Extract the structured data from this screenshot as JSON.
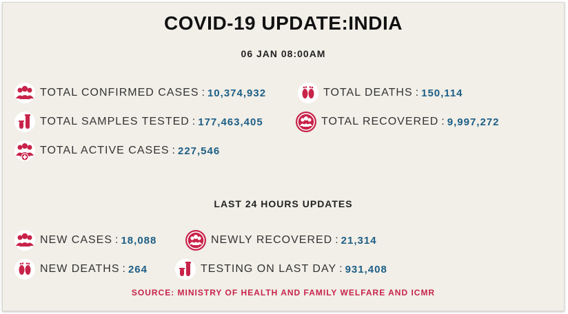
{
  "title": "COVID-19 UPDATE:INDIA",
  "timestamp": "06 JAN 08:00AM",
  "summary": {
    "confirmed": {
      "label": "TOTAL CONFIRMED CASES",
      "value": "10,374,932",
      "icon": "people-group-icon"
    },
    "deaths": {
      "label": "TOTAL DEATHS",
      "value": "150,114",
      "icon": "footprints-icon"
    },
    "tested": {
      "label": "TOTAL SAMPLES TESTED",
      "value": "177,463,405",
      "icon": "test-tube-icon"
    },
    "recovered": {
      "label": "TOTAL RECOVERED",
      "value": "9,997,272",
      "icon": "recovered-group-icon"
    },
    "active": {
      "label": "TOTAL ACTIVE CASES",
      "value": "227,546",
      "icon": "people-plus-icon"
    }
  },
  "last24": {
    "heading": "LAST 24 HOURS UPDATES",
    "new_cases": {
      "label": "NEW CASES",
      "value": "18,088",
      "icon": "people-group-icon"
    },
    "newly_recovered": {
      "label": "NEWLY RECOVERED",
      "value": "21,314",
      "icon": "recovered-group-icon"
    },
    "new_deaths": {
      "label": "NEW DEATHS",
      "value": "264",
      "icon": "footprints-icon"
    },
    "testing_last_day": {
      "label": "TESTING ON LAST DAY",
      "value": "931,408",
      "icon": "test-tube-icon"
    }
  },
  "source": "SOURCE: MINISTRY OF HEALTH AND FAMILY WELFARE AND ICMR",
  "colors": {
    "background": "#f1efe8",
    "value_blue": "#1d5e85",
    "icon_red": "#c8234a",
    "source_red": "#c8234a"
  }
}
